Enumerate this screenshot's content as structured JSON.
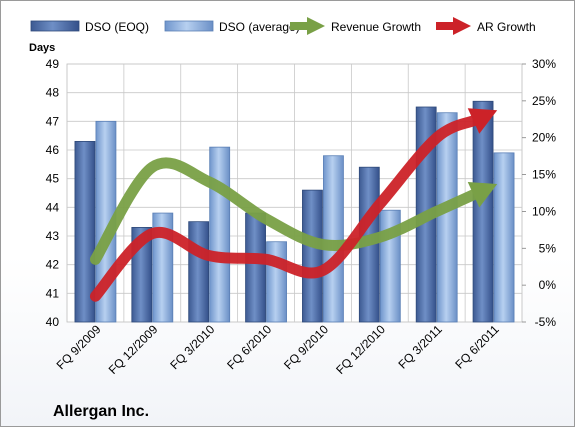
{
  "chart_data": {
    "type": "bar",
    "company": "Allergan Inc.",
    "ylabel": "Days",
    "ylim": [
      40,
      49
    ],
    "y_ticks": [
      "40",
      "41",
      "42",
      "43",
      "44",
      "45",
      "46",
      "47",
      "48",
      "49"
    ],
    "y2lim": [
      -5,
      30
    ],
    "y2_ticks": [
      "-5%",
      "0%",
      "5%",
      "10%",
      "15%",
      "20%",
      "25%",
      "30%"
    ],
    "categories": [
      "FQ 9/2009",
      "FQ 12/2009",
      "FQ 3/2010",
      "FQ 6/2010",
      "FQ 9/2010",
      "FQ 12/2010",
      "FQ 3/2011",
      "FQ 6/2011"
    ],
    "legend_position": "top",
    "grid": true,
    "series": [
      {
        "name": "DSO (EOQ)",
        "kind": "bar",
        "axis": "left",
        "color": "#4f6fa8",
        "values": [
          46.3,
          43.3,
          43.5,
          43.8,
          44.6,
          45.4,
          47.5,
          47.7
        ]
      },
      {
        "name": "DSO (average)",
        "kind": "bar",
        "axis": "left",
        "color": "#8fb0dc",
        "values": [
          47.0,
          43.8,
          46.1,
          42.8,
          45.8,
          43.9,
          47.3,
          45.9
        ]
      },
      {
        "name": "Revenue Growth",
        "kind": "arrow-line",
        "axis": "right",
        "color": "#79a046",
        "values": [
          3.5,
          16.0,
          14.0,
          9.0,
          5.5,
          6.5,
          10.0,
          13.5
        ]
      },
      {
        "name": "AR Growth",
        "kind": "arrow-line",
        "axis": "right",
        "color": "#cc2228",
        "values": [
          -1.5,
          7.0,
          4.0,
          3.5,
          2.0,
          11.0,
          20.0,
          23.5
        ]
      }
    ]
  }
}
